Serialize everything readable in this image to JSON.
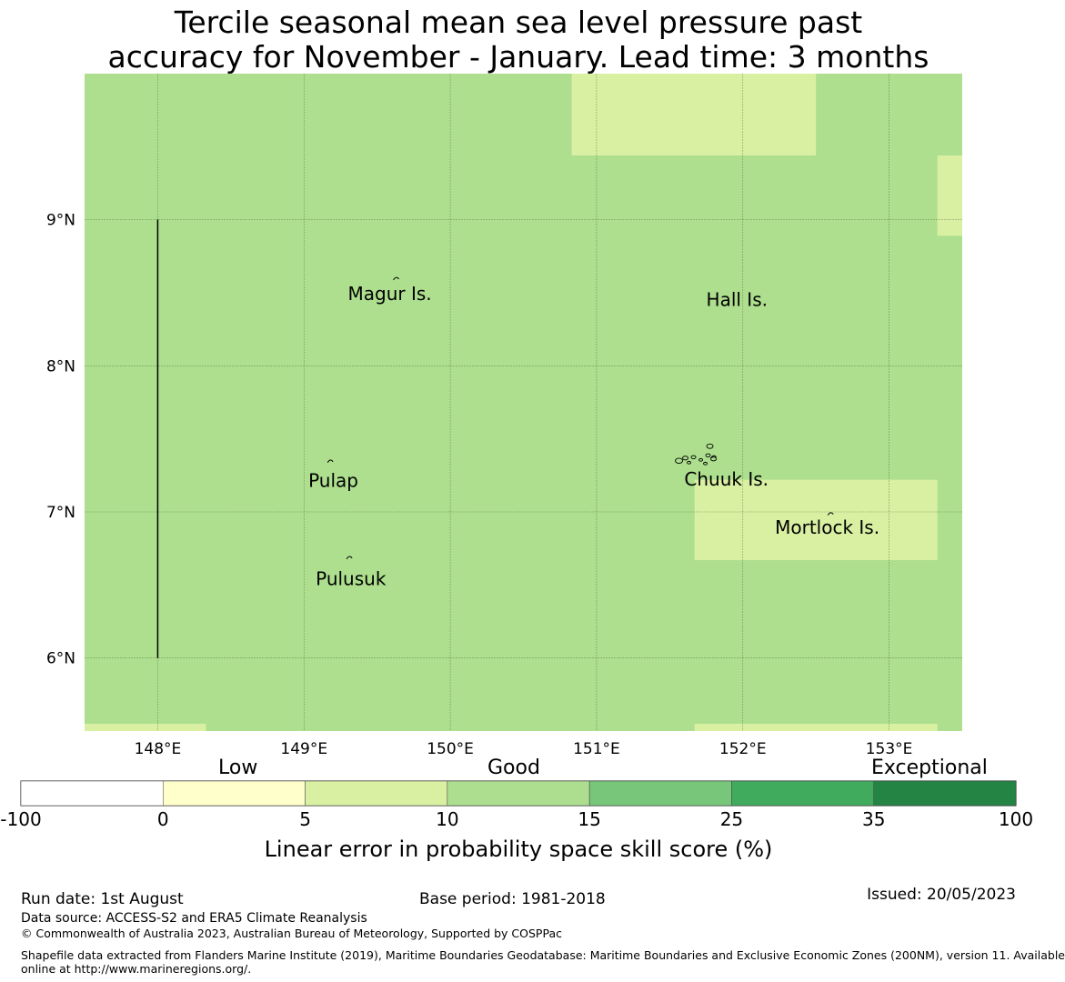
{
  "title_lines": [
    "Tercile seasonal mean sea level pressure past",
    "accuracy for November - January. Lead time: 3 months"
  ],
  "map": {
    "lon_range": [
      147.5,
      153.5
    ],
    "lat_range": [
      5.5,
      10.0
    ],
    "base_color": "#addf8e",
    "low_skill_color": "#d9f0a3",
    "grid": true,
    "lon_ticks": [
      {
        "value": 148,
        "label": "148°E"
      },
      {
        "value": 149,
        "label": "149°E"
      },
      {
        "value": 150,
        "label": "150°E"
      },
      {
        "value": 151,
        "label": "151°E"
      },
      {
        "value": 152,
        "label": "152°E"
      },
      {
        "value": 153,
        "label": "153°E"
      }
    ],
    "lat_ticks": [
      {
        "value": 9,
        "label": "9°N"
      },
      {
        "value": 8,
        "label": "8°N"
      },
      {
        "value": 7,
        "label": "7°N"
      },
      {
        "value": 6,
        "label": "6°N"
      }
    ],
    "low_skill_cells": [
      {
        "lon": [
          150.83,
          152.5
        ],
        "lat": [
          9.44,
          10.0
        ]
      },
      {
        "lon": [
          153.33,
          153.5
        ],
        "lat": [
          8.89,
          9.44
        ]
      },
      {
        "lon": [
          151.67,
          153.33
        ],
        "lat": [
          6.67,
          7.22
        ]
      },
      {
        "lon": [
          147.5,
          148.33
        ],
        "lat": [
          5.5,
          5.55
        ]
      },
      {
        "lon": [
          151.67,
          153.33
        ],
        "lat": [
          5.5,
          5.55
        ]
      }
    ],
    "boundary_line": {
      "lon": 148.0,
      "lat": [
        6.0,
        9.0
      ]
    },
    "places": [
      {
        "name": "Magur Is.",
        "lon": 149.3,
        "lat": 8.45,
        "mark_lon": 149.63,
        "mark_lat": 8.6
      },
      {
        "name": "Hall Is.",
        "lon": 151.75,
        "lat": 8.41,
        "mark_lon": null,
        "mark_lat": null
      },
      {
        "name": "Pulap",
        "lon": 149.03,
        "lat": 7.17,
        "mark_lon": 149.18,
        "mark_lat": 7.35
      },
      {
        "name": "Chuuk Is.",
        "lon": 151.6,
        "lat": 7.18,
        "mark_lon": 151.8,
        "mark_lat": 7.38
      },
      {
        "name": "Mortlock Is.",
        "lon": 152.22,
        "lat": 6.85,
        "mark_lon": 152.6,
        "mark_lat": 6.99
      },
      {
        "name": "Pulusuk",
        "lon": 149.08,
        "lat": 6.5,
        "mark_lon": 149.31,
        "mark_lat": 6.69
      }
    ]
  },
  "colorbar": {
    "sections": [
      "Low",
      "Good",
      "Exceptional"
    ],
    "ticks": [
      "-100",
      "0",
      "5",
      "10",
      "15",
      "25",
      "35",
      "100"
    ],
    "colors": [
      "#ffffff",
      "#ffffcc",
      "#d9f0a3",
      "#addd8e",
      "#78c679",
      "#41ab5d",
      "#238443"
    ],
    "label": "Linear error in probability space skill score (%)"
  },
  "footer": {
    "run_date": "Run date: 1st August",
    "base_period": "Base period: 1981-2018",
    "issued": "Issued: 20/05/2023",
    "data_source": "Data source: ACCESS-S2 and ERA5 Climate Reanalysis",
    "copyright": "© Commonwealth of Australia 2023, Australian Bureau of Meteorology, Supported by COSPPac",
    "shapefile_line1": "Shapefile data extracted from Flanders Marine Institute (2019), Maritime Boundaries Geodatabase: Maritime Boundaries and Exclusive Economic Zones (200NM), version 11. Available",
    "shapefile_line2": "online at http://www.marineregions.org/."
  }
}
